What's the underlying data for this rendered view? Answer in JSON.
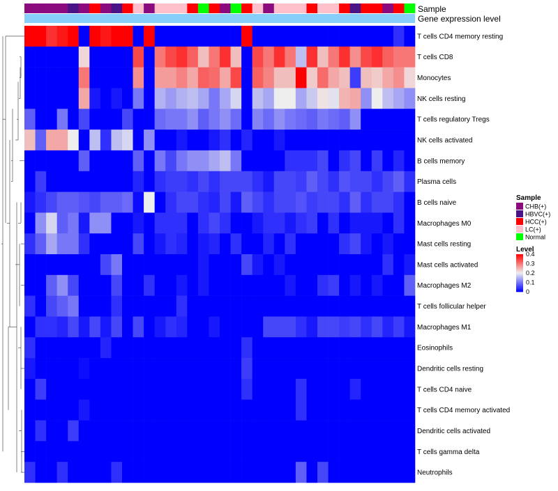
{
  "chart_data": {
    "type": "heatmap",
    "title": "",
    "annotation_tracks": [
      {
        "label": "Sample"
      },
      {
        "label": "Gene expression level"
      }
    ],
    "row_labels": [
      "T cells CD4 memory resting",
      "T cells CD8",
      "Monocytes",
      "NK cells resting",
      "T cells regulatory  Tregs",
      "NK cells activated",
      "B cells memory",
      "Plasma cells",
      "B cells naive",
      "Macrophages M0",
      "Mast cells resting",
      "Mast cells activated",
      "Macrophages M2",
      "T cells follicular helper",
      "Macrophages M1",
      "Eosinophils",
      "Dendritic cells resting",
      "T cells CD4 naive",
      "T cells CD4 memory activated",
      "Dendritic cells activated",
      "T cells gamma delta",
      "Neutrophils"
    ],
    "sample_groups": [
      "CHB(+)",
      "CHB(+)",
      "CHB(+)",
      "CHB(+)",
      "HBVC(+)",
      "CHB(+)",
      "HCC(+)",
      "CHB(+)",
      "HBVC(+)",
      "HCC(+)",
      "LC(+)",
      "CHB(+)",
      "LC(+)",
      "LC(+)",
      "LC(+)",
      "HCC(+)",
      "Normal",
      "HCC(+)",
      "CHB(+)",
      "Normal",
      "HCC(+)",
      "LC(+)",
      "CHB(+)",
      "LC(+)",
      "LC(+)",
      "LC(+)",
      "HCC(+)",
      "LC(+)",
      "LC(+)",
      "HCC(+)",
      "HBVC(+)",
      "HCC(+)",
      "HCC(+)",
      "CHB(+)",
      "HCC(+)",
      "Normal"
    ],
    "values": [
      [
        0.4,
        0.4,
        0.36,
        0.38,
        0.4,
        0.0,
        0.4,
        0.38,
        0.4,
        0.4,
        0.0,
        0.4,
        0.0,
        0.0,
        0.0,
        0.0,
        0.0,
        0.0,
        0.0,
        0.0,
        0.4,
        0.0,
        0.0,
        0.0,
        0.0,
        0.0,
        0.0,
        0.0,
        0.0,
        0.0,
        0.0,
        0.0,
        0.0,
        0.0,
        0.04,
        0.0
      ],
      [
        0.0,
        0.0,
        0.0,
        0.0,
        0.0,
        0.22,
        0.0,
        0.0,
        0.0,
        0.0,
        0.34,
        0.0,
        0.3,
        0.34,
        0.36,
        0.32,
        0.24,
        0.3,
        0.36,
        0.24,
        0.0,
        0.34,
        0.3,
        0.36,
        0.3,
        0.16,
        0.36,
        0.24,
        0.3,
        0.36,
        0.28,
        0.34,
        0.36,
        0.32,
        0.3,
        0.3
      ],
      [
        0.0,
        0.0,
        0.0,
        0.0,
        0.0,
        0.3,
        0.0,
        0.0,
        0.0,
        0.0,
        0.28,
        0.0,
        0.27,
        0.27,
        0.29,
        0.26,
        0.32,
        0.31,
        0.26,
        0.34,
        0.0,
        0.32,
        0.29,
        0.24,
        0.24,
        0.4,
        0.23,
        0.31,
        0.26,
        0.24,
        0.05,
        0.24,
        0.23,
        0.26,
        0.28,
        0.22
      ],
      [
        0.0,
        0.0,
        0.0,
        0.0,
        0.0,
        0.26,
        0.02,
        0.0,
        0.02,
        0.0,
        0.1,
        0.0,
        0.15,
        0.13,
        0.15,
        0.16,
        0.14,
        0.1,
        0.14,
        0.18,
        0.0,
        0.16,
        0.14,
        0.2,
        0.2,
        0.14,
        0.17,
        0.21,
        0.19,
        0.25,
        0.26,
        0.12,
        0.2,
        0.16,
        0.14,
        0.12
      ],
      [
        0.08,
        0.0,
        0.0,
        0.1,
        0.0,
        0.06,
        0.0,
        0.0,
        0.0,
        0.06,
        0.0,
        0.0,
        0.09,
        0.1,
        0.1,
        0.12,
        0.08,
        0.1,
        0.12,
        0.09,
        0.0,
        0.11,
        0.09,
        0.12,
        0.1,
        0.09,
        0.08,
        0.1,
        0.09,
        0.08,
        0.12,
        0.0,
        0.0,
        0.0,
        0.0,
        0.0
      ],
      [
        0.24,
        0.08,
        0.26,
        0.26,
        0.2,
        0.0,
        0.16,
        0.04,
        0.16,
        0.18,
        0.0,
        0.12,
        0.0,
        0.0,
        0.02,
        0.0,
        0.0,
        0.02,
        0.04,
        0.0,
        0.03,
        0.0,
        0.0,
        0.02,
        0.0,
        0.0,
        0.0,
        0.0,
        0.0,
        0.0,
        0.0,
        0.0,
        0.0,
        0.0,
        0.0,
        0.0
      ],
      [
        0.0,
        0.0,
        0.0,
        0.0,
        0.0,
        0.08,
        0.0,
        0.0,
        0.0,
        0.0,
        0.08,
        0.0,
        0.1,
        0.06,
        0.1,
        0.12,
        0.12,
        0.14,
        0.16,
        0.1,
        0.0,
        0.0,
        0.0,
        0.0,
        0.04,
        0.04,
        0.04,
        0.06,
        0.0,
        0.04,
        0.06,
        0.0,
        0.05,
        0.0,
        0.03,
        0.0
      ],
      [
        0.0,
        0.05,
        0.0,
        0.0,
        0.0,
        0.0,
        0.0,
        0.0,
        0.0,
        0.0,
        0.03,
        0.0,
        0.04,
        0.05,
        0.05,
        0.04,
        0.06,
        0.04,
        0.06,
        0.06,
        0.06,
        0.04,
        0.02,
        0.06,
        0.06,
        0.05,
        0.08,
        0.06,
        0.04,
        0.07,
        0.06,
        0.06,
        0.04,
        0.06,
        0.08,
        0.04
      ],
      [
        0.02,
        0.04,
        0.06,
        0.08,
        0.08,
        0.07,
        0.06,
        0.08,
        0.08,
        0.09,
        0.01,
        0.2,
        0.0,
        0.04,
        0.06,
        0.06,
        0.04,
        0.03,
        0.06,
        0.02,
        0.08,
        0.06,
        0.04,
        0.06,
        0.06,
        0.07,
        0.05,
        0.06,
        0.06,
        0.04,
        0.08,
        0.04,
        0.06,
        0.06,
        0.04,
        0.0
      ],
      [
        0.0,
        0.12,
        0.18,
        0.08,
        0.1,
        0.02,
        0.12,
        0.12,
        0.0,
        0.0,
        0.02,
        0.0,
        0.04,
        0.04,
        0.04,
        0.0,
        0.04,
        0.06,
        0.04,
        0.0,
        0.0,
        0.02,
        0.04,
        0.04,
        0.02,
        0.04,
        0.05,
        0.0,
        0.04,
        0.0,
        0.02,
        0.02,
        0.02,
        0.0,
        0.04,
        0.0
      ],
      [
        0.04,
        0.08,
        0.14,
        0.1,
        0.1,
        0.04,
        0.0,
        0.0,
        0.0,
        0.0,
        0.06,
        0.0,
        0.02,
        0.04,
        0.03,
        0.0,
        0.02,
        0.03,
        0.0,
        0.04,
        0.0,
        0.0,
        0.03,
        0.0,
        0.04,
        0.0,
        0.0,
        0.0,
        0.0,
        0.04,
        0.06,
        0.02,
        0.0,
        0.02,
        0.0,
        0.0
      ],
      [
        0.0,
        0.0,
        0.0,
        0.0,
        0.0,
        0.0,
        0.0,
        0.06,
        0.1,
        0.0,
        0.0,
        0.0,
        0.0,
        0.0,
        0.0,
        0.0,
        0.02,
        0.0,
        0.0,
        0.0,
        0.06,
        0.02,
        0.0,
        0.02,
        0.0,
        0.0,
        0.0,
        0.0,
        0.0,
        0.0,
        0.0,
        0.0,
        0.0,
        0.04,
        0.0,
        0.02
      ],
      [
        0.0,
        0.0,
        0.08,
        0.12,
        0.06,
        0.0,
        0.0,
        0.0,
        0.06,
        0.0,
        0.0,
        0.04,
        0.0,
        0.0,
        0.02,
        0.0,
        0.02,
        0.0,
        0.0,
        0.0,
        0.0,
        0.0,
        0.0,
        0.0,
        0.02,
        0.0,
        0.0,
        0.04,
        0.05,
        0.0,
        0.02,
        0.0,
        0.02,
        0.0,
        0.0,
        0.08
      ],
      [
        0.04,
        0.0,
        0.06,
        0.08,
        0.1,
        0.0,
        0.0,
        0.0,
        0.04,
        0.0,
        0.0,
        0.0,
        0.0,
        0.0,
        0.04,
        0.0,
        0.0,
        0.0,
        0.0,
        0.0,
        0.0,
        0.0,
        0.0,
        0.0,
        0.0,
        0.0,
        0.0,
        0.0,
        0.0,
        0.0,
        0.0,
        0.0,
        0.0,
        0.0,
        0.0,
        0.0
      ],
      [
        0.0,
        0.04,
        0.04,
        0.03,
        0.06,
        0.02,
        0.06,
        0.02,
        0.06,
        0.0,
        0.06,
        0.0,
        0.02,
        0.04,
        0.03,
        0.0,
        0.0,
        0.02,
        0.0,
        0.0,
        0.0,
        0.0,
        0.06,
        0.06,
        0.06,
        0.04,
        0.02,
        0.06,
        0.06,
        0.05,
        0.06,
        0.04,
        0.06,
        0.03,
        0.05,
        0.02
      ],
      [
        0.04,
        0.0,
        0.0,
        0.0,
        0.0,
        0.0,
        0.0,
        0.03,
        0.0,
        0.0,
        0.0,
        0.0,
        0.0,
        0.0,
        0.0,
        0.0,
        0.0,
        0.0,
        0.0,
        0.0,
        0.04,
        0.0,
        0.0,
        0.0,
        0.0,
        0.0,
        0.0,
        0.0,
        0.0,
        0.0,
        0.0,
        0.0,
        0.0,
        0.0,
        0.0,
        0.0
      ],
      [
        0.02,
        0.0,
        0.0,
        0.0,
        0.0,
        0.01,
        0.0,
        0.0,
        0.0,
        0.0,
        0.0,
        0.0,
        0.0,
        0.0,
        0.0,
        0.0,
        0.0,
        0.0,
        0.0,
        0.0,
        0.05,
        0.0,
        0.0,
        0.0,
        0.0,
        0.0,
        0.0,
        0.0,
        0.0,
        0.0,
        0.0,
        0.0,
        0.0,
        0.0,
        0.0,
        0.0
      ],
      [
        0.0,
        0.05,
        0.0,
        0.0,
        0.0,
        0.0,
        0.0,
        0.0,
        0.0,
        0.0,
        0.0,
        0.0,
        0.0,
        0.0,
        0.0,
        0.0,
        0.0,
        0.0,
        0.0,
        0.0,
        0.04,
        0.0,
        0.0,
        0.0,
        0.0,
        0.04,
        0.0,
        0.0,
        0.0,
        0.0,
        0.03,
        0.0,
        0.0,
        0.0,
        0.0,
        0.0
      ],
      [
        0.0,
        0.0,
        0.0,
        0.0,
        0.0,
        0.02,
        0.0,
        0.0,
        0.0,
        0.0,
        0.0,
        0.0,
        0.0,
        0.0,
        0.0,
        0.0,
        0.0,
        0.0,
        0.0,
        0.0,
        0.0,
        0.0,
        0.0,
        0.0,
        0.0,
        0.04,
        0.0,
        0.0,
        0.0,
        0.0,
        0.0,
        0.0,
        0.0,
        0.0,
        0.0,
        0.0
      ],
      [
        0.0,
        0.04,
        0.0,
        0.0,
        0.05,
        0.0,
        0.0,
        0.0,
        0.0,
        0.0,
        0.0,
        0.0,
        0.0,
        0.0,
        0.0,
        0.0,
        0.0,
        0.0,
        0.0,
        0.0,
        0.0,
        0.0,
        0.0,
        0.0,
        0.0,
        0.0,
        0.0,
        0.0,
        0.0,
        0.0,
        0.0,
        0.0,
        0.0,
        0.0,
        0.0,
        0.0
      ],
      [
        0.0,
        0.0,
        0.0,
        0.0,
        0.0,
        0.0,
        0.0,
        0.0,
        0.0,
        0.0,
        0.0,
        0.0,
        0.0,
        0.0,
        0.0,
        0.0,
        0.0,
        0.0,
        0.0,
        0.0,
        0.0,
        0.0,
        0.0,
        0.0,
        0.0,
        0.0,
        0.0,
        0.0,
        0.0,
        0.0,
        0.0,
        0.0,
        0.0,
        0.0,
        0.0,
        0.0
      ],
      [
        0.04,
        0.0,
        0.0,
        0.04,
        0.0,
        0.0,
        0.0,
        0.0,
        0.04,
        0.0,
        0.0,
        0.0,
        0.0,
        0.0,
        0.0,
        0.0,
        0.0,
        0.0,
        0.0,
        0.0,
        0.0,
        0.0,
        0.0,
        0.0,
        0.0,
        0.08,
        0.0,
        0.06,
        0.0,
        0.0,
        0.0,
        0.0,
        0.0,
        0.0,
        0.0,
        0.0
      ]
    ],
    "value_range": [
      0,
      0.4
    ],
    "color_scale": [
      {
        "value": 0,
        "color": "#0000ff"
      },
      {
        "value": 0.2,
        "color": "#eeeeee"
      },
      {
        "value": 0.4,
        "color": "#ff0000"
      }
    ],
    "legends": {
      "sample": {
        "title": "Sample",
        "entries": [
          {
            "label": "CHB(+)",
            "color": "#8b0a7e"
          },
          {
            "label": "HBVC(+)",
            "color": "#4a1486"
          },
          {
            "label": "HCC(+)",
            "color": "#ff0000"
          },
          {
            "label": "LC(+)",
            "color": "#ffc0cb"
          },
          {
            "label": "Normal",
            "color": "#00ff00"
          }
        ]
      },
      "level": {
        "title": "Level",
        "ticks": [
          0.4,
          0.3,
          0.2,
          0.1,
          0
        ]
      }
    },
    "gene_expression_color": "#87cefa",
    "dendrogram": "rows clustered (left side)"
  }
}
